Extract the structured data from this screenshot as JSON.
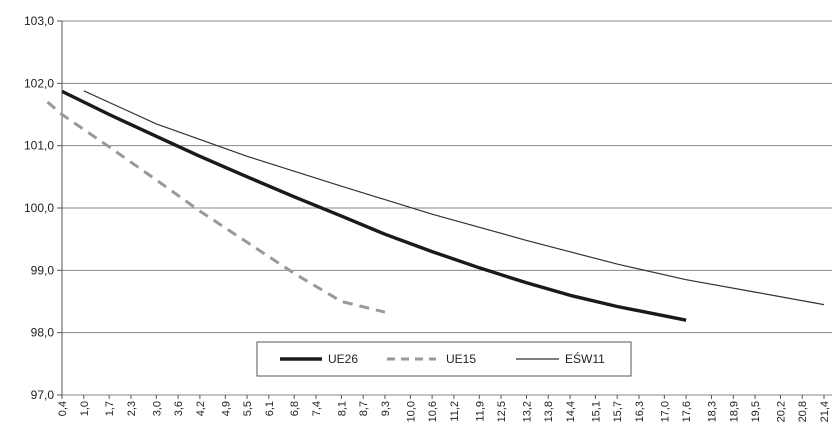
{
  "chart_data": {
    "type": "line",
    "title": "",
    "xlabel": "",
    "ylabel": "",
    "ylim": [
      97.0,
      103.0
    ],
    "y_ticks": [
      "97,0",
      "98,0",
      "99,0",
      "100,0",
      "101,0",
      "102,0",
      "103,0"
    ],
    "x_ticks": [
      "0,4",
      "1,0",
      "1,7",
      "2,3",
      "3,0",
      "3,6",
      "4,2",
      "4,9",
      "5,5",
      "6,1",
      "6,8",
      "7,4",
      "8,1",
      "8,7",
      "9,3",
      "10,0",
      "10,6",
      "11,2",
      "11,9",
      "12,5",
      "13,2",
      "13,8",
      "14,4",
      "15,1",
      "15,7",
      "16,3",
      "17,0",
      "17,6",
      "18,3",
      "18,9",
      "19,5",
      "20,2",
      "20,8",
      "21,4"
    ],
    "grid": "horizontal",
    "legend_position": "bottom-center",
    "series": [
      {
        "name": "UE26",
        "style": "thick-solid",
        "color": "#1a1a1a",
        "x": [
          0.4,
          1.7,
          3.0,
          4.2,
          5.5,
          6.8,
          8.1,
          9.3,
          10.6,
          11.9,
          13.2,
          14.4,
          15.7,
          17.0,
          17.6
        ],
        "y": [
          101.87,
          101.5,
          101.15,
          100.83,
          100.5,
          100.18,
          99.87,
          99.58,
          99.3,
          99.04,
          98.8,
          98.6,
          98.42,
          98.27,
          98.2
        ]
      },
      {
        "name": "UE15",
        "style": "dashed",
        "color": "#999999",
        "x": [
          0.0,
          0.4,
          1.7,
          3.0,
          4.2,
          5.5,
          6.8,
          8.1,
          9.3
        ],
        "y": [
          101.7,
          101.5,
          100.98,
          100.45,
          99.95,
          99.45,
          98.95,
          98.5,
          98.33
        ]
      },
      {
        "name": "EŚW11",
        "style": "thin-solid",
        "color": "#333333",
        "x": [
          1.0,
          3.0,
          5.5,
          8.1,
          10.6,
          13.2,
          15.7,
          17.6,
          19.5,
          21.4
        ],
        "y": [
          101.88,
          101.35,
          100.83,
          100.35,
          99.9,
          99.48,
          99.1,
          98.85,
          98.65,
          98.45
        ]
      }
    ]
  }
}
